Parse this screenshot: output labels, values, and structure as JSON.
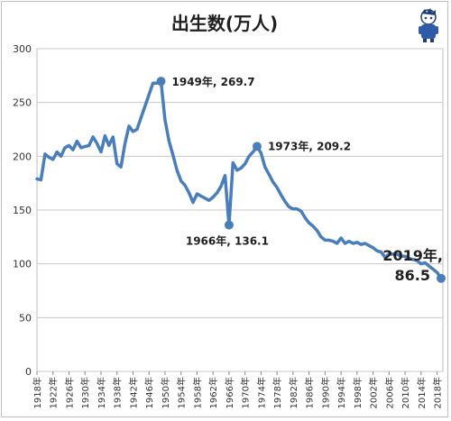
{
  "chart_data": {
    "type": "line",
    "title": "出生数(万人)",
    "xlabel": "",
    "ylabel": "",
    "ylim": [
      0,
      300
    ],
    "y_ticks": [
      0,
      50,
      100,
      150,
      200,
      250,
      300
    ],
    "xlim": [
      1918,
      2019
    ],
    "x_tick_labels": [
      "1918年",
      "1922年",
      "1926年",
      "1930年",
      "1934年",
      "1938年",
      "1942年",
      "1946年",
      "1950年",
      "1954年",
      "1958年",
      "1962年",
      "1966年",
      "1970年",
      "1974年",
      "1978年",
      "1982年",
      "1986年",
      "1990年",
      "1994年",
      "1998年",
      "2002年",
      "2006年",
      "2010年",
      "2014年",
      "2018年"
    ],
    "grid": true,
    "line_color": "#4a7ebb",
    "series": [
      {
        "x": [
          1918,
          1919,
          1920,
          1921,
          1922,
          1923,
          1924,
          1925,
          1926,
          1927,
          1928,
          1929,
          1930,
          1931,
          1932,
          1933,
          1934,
          1935,
          1936,
          1937,
          1938,
          1939,
          1940,
          1941,
          1942,
          1943,
          1947,
          1948,
          1949,
          1950,
          1951,
          1952,
          1953,
          1954,
          1955,
          1956,
          1957,
          1958,
          1959,
          1960,
          1961,
          1962,
          1963,
          1964,
          1965,
          1966,
          1967,
          1968,
          1969,
          1970,
          1971,
          1972,
          1973,
          1974,
          1975,
          1976,
          1977,
          1978,
          1979,
          1980,
          1981,
          1982,
          1983,
          1984,
          1985,
          1986,
          1987,
          1988,
          1989,
          1990,
          1991,
          1992,
          1993,
          1994,
          1995,
          1996,
          1997,
          1998,
          1999,
          2000,
          2001,
          2002,
          2003,
          2004,
          2005,
          2006,
          2007,
          2008,
          2009,
          2010,
          2011,
          2012,
          2013,
          2014,
          2015,
          2016,
          2017,
          2018,
          2019
        ],
        "values": [
          179,
          178,
          202,
          199,
          197,
          204,
          200,
          208,
          210,
          206,
          214,
          208,
          209,
          210,
          218,
          212,
          204,
          219,
          210,
          218,
          193,
          190,
          212,
          228,
          223,
          225,
          268,
          268,
          269.7,
          234,
          214,
          201,
          187,
          177,
          173,
          166,
          157,
          165,
          163,
          161,
          159,
          162,
          166,
          172,
          182,
          136.1,
          194,
          187,
          189,
          193,
          200,
          204,
          209.2,
          203,
          190,
          183,
          176,
          171,
          164,
          158,
          153,
          151,
          151,
          149,
          143,
          138,
          135,
          131,
          125,
          122,
          122,
          121,
          119,
          124,
          119,
          121,
          119,
          120,
          118,
          119,
          117,
          115,
          112,
          111,
          106,
          109,
          109,
          109,
          107,
          107,
          105,
          104,
          103,
          100,
          101,
          98,
          95,
          92,
          86.5
        ]
      }
    ],
    "annotations": [
      {
        "label": "1949年, 269.7",
        "x": 1949,
        "y": 269.7
      },
      {
        "label": "1966年, 136.1",
        "x": 1966,
        "y": 136.1
      },
      {
        "label": "1973年, 209.2",
        "x": 1973,
        "y": 209.2
      },
      {
        "label_line1": "2019年,",
        "label_line2": "86.5",
        "x": 2019,
        "y": 86.5
      }
    ]
  }
}
